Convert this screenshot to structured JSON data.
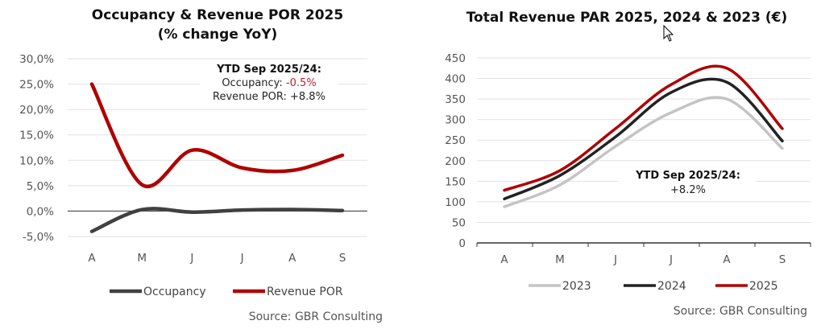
{
  "chart_data": [
    {
      "type": "line",
      "title": [
        "Occupancy & Revenue POR 2025",
        "(% change YoY)"
      ],
      "categories": [
        "A",
        "M",
        "J",
        "J",
        "A",
        "S"
      ],
      "yticks": [
        "30,0%",
        "25,0%",
        "20,0%",
        "15,0%",
        "10,0%",
        "5,0%",
        "0,0%",
        "-5,0%"
      ],
      "ylim": [
        -5,
        30
      ],
      "grid": true,
      "legend": "bottom",
      "series": [
        {
          "name": "Occupancy",
          "color": "#404040",
          "values": [
            -4.0,
            0.3,
            -0.2,
            0.2,
            0.3,
            0.1
          ]
        },
        {
          "name": "Revenue POR",
          "color": "#b00000",
          "values": [
            25.0,
            5.2,
            12.0,
            8.5,
            8.0,
            11.0
          ]
        }
      ],
      "annotation": {
        "heading": "YTD Sep 2025/24:",
        "line1_label": "Occupancy: ",
        "line1_value": "-0.5%",
        "line1_value_color": "#c0202a",
        "line2": "Revenue POR: +8.8%"
      },
      "source": "Source: GBR Consulting"
    },
    {
      "type": "line",
      "title": [
        "Total Revenue PAR 2025, 2024 & 2023 (€)"
      ],
      "categories": [
        "A",
        "M",
        "J",
        "J",
        "A",
        "S"
      ],
      "yticks": [
        "450",
        "400",
        "350",
        "300",
        "250",
        "200",
        "150",
        "100",
        "50",
        "0"
      ],
      "ylim": [
        0,
        450
      ],
      "grid": true,
      "legend": "bottom",
      "series": [
        {
          "name": "2023",
          "color": "#c4c4c4",
          "values": [
            88,
            141,
            235,
            317,
            350,
            230
          ]
        },
        {
          "name": "2024",
          "color": "#222222",
          "values": [
            107,
            164,
            258,
            366,
            391,
            248
          ]
        },
        {
          "name": "2025",
          "color": "#b00000",
          "values": [
            128,
            176,
            278,
            385,
            425,
            278
          ]
        }
      ],
      "annotation": {
        "heading": "YTD Sep 2025/24:",
        "line1": "+8.2%"
      },
      "source": "Source: GBR Consulting"
    }
  ]
}
